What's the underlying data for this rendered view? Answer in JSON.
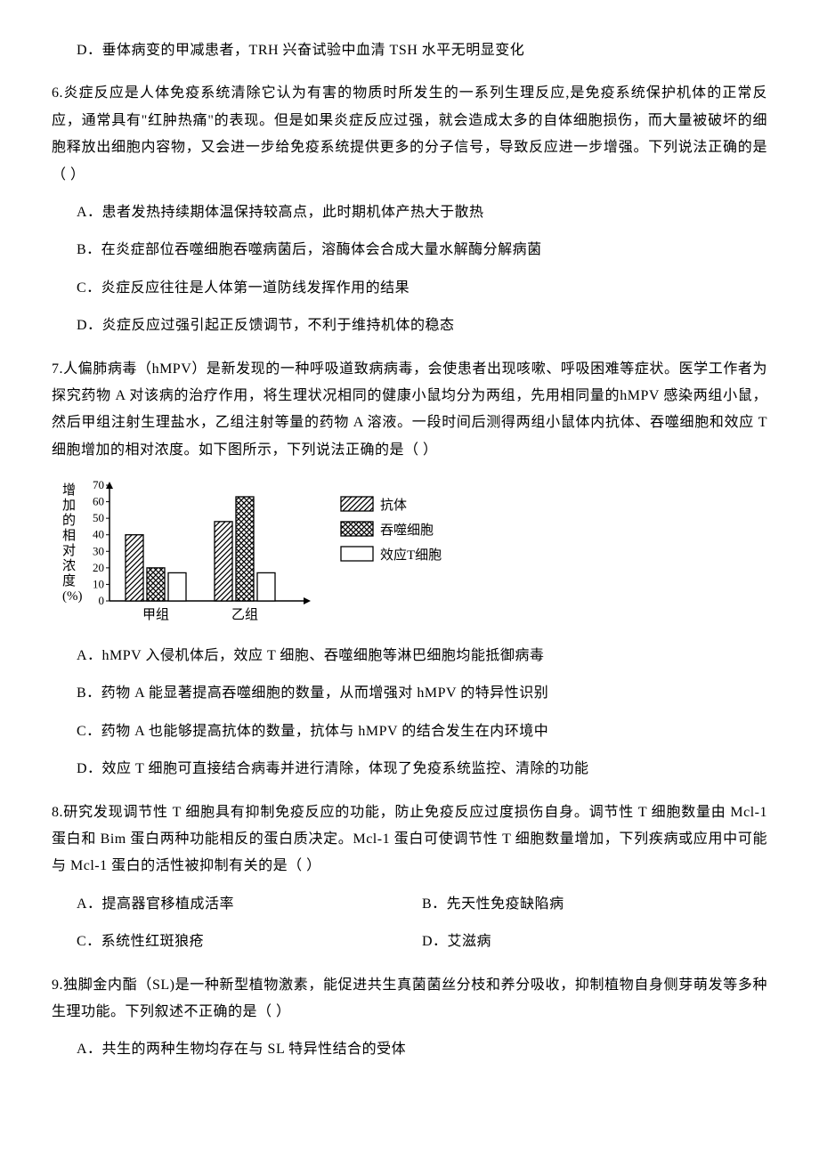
{
  "q5": {
    "options": {
      "D": "D．垂体病变的甲减患者，TRH 兴奋试验中血清 TSH 水平无明显变化"
    }
  },
  "q6": {
    "stem": "6.炎症反应是人体免疫系统清除它认为有害的物质时所发生的一系列生理反应,是免疫系统保护机体的正常反应，通常具有\"红肿热痛\"的表现。但是如果炎症反应过强，就会造成太多的自体细胞损伤，而大量被破坏的细胞释放出细胞内容物，又会进一步给免疫系统提供更多的分子信号，导致反应进一步增强。下列说法正确的是（    ）",
    "options": {
      "A": "A．患者发热持续期体温保持较高点，此时期机体产热大于散热",
      "B": "B．在炎症部位吞噬细胞吞噬病菌后，溶酶体会合成大量水解酶分解病菌",
      "C": "C．炎症反应往往是人体第一道防线发挥作用的结果",
      "D": "D．炎症反应过强引起正反馈调节，不利于维持机体的稳态"
    }
  },
  "q7": {
    "stem": "7.人偏肺病毒（hMPV）是新发现的一种呼吸道致病病毒，会使患者出现咳嗽、呼吸困难等症状。医学工作者为探究药物 A 对该病的治疗作用，将生理状况相同的健康小鼠均分为两组，先用相同量的hMPV 感染两组小鼠，然后甲组注射生理盐水，乙组注射等量的药物 A 溶液。一段时间后测得两组小鼠体内抗体、吞噬细胞和效应 T 细胞增加的相对浓度。如下图所示，下列说法正确的是（    ）",
    "options": {
      "A": "A．hMPV 入侵机体后，效应 T 细胞、吞噬细胞等淋巴细胞均能抵御病毒",
      "B": "B．药物 A 能显著提高吞噬细胞的数量，从而增强对 hMPV 的特异性识别",
      "C": "C．药物 A 也能够提高抗体的数量，抗体与 hMPV 的结合发生在内环境中",
      "D": "D．效应 T 细胞可直接结合病毒并进行清除，体现了免疫系统监控、清除的功能"
    },
    "chart": {
      "type": "bar",
      "y_label_lines": [
        "增",
        "加",
        "的",
        "相",
        "对",
        "浓",
        "度",
        "(%)"
      ],
      "y_label_fontsize": 15,
      "y_ticks": [
        0,
        10,
        20,
        30,
        40,
        50,
        60,
        70
      ],
      "y_tick_fontsize": 13,
      "groups": [
        "甲组",
        "乙组"
      ],
      "group_fontsize": 15,
      "series": [
        {
          "name": "抗体",
          "pattern": "hatch",
          "values": [
            40,
            48
          ]
        },
        {
          "name": "吞噬细胞",
          "pattern": "cross",
          "values": [
            20,
            63
          ]
        },
        {
          "name": "效应T细胞",
          "pattern": "none",
          "values": [
            17,
            17
          ]
        }
      ],
      "legend_fontsize": 15,
      "axis_color": "#000000",
      "bar_border_color": "#000000",
      "background_color": "#ffffff",
      "axis_arrow": true
    }
  },
  "q8": {
    "stem": "8.研究发现调节性 T 细胞具有抑制免疫反应的功能，防止免疫反应过度损伤自身。调节性 T 细胞数量由 Mcl-1 蛋白和 Bim 蛋白两种功能相反的蛋白质决定。Mcl-1 蛋白可使调节性 T 细胞数量增加，下列疾病或应用中可能与 Mcl-1 蛋白的活性被抑制有关的是（    ）",
    "options": {
      "A": "A．提高器官移植成活率",
      "B": "B．先天性免疫缺陷病",
      "C": "C．系统性红斑狼疮",
      "D": "D．艾滋病"
    }
  },
  "q9": {
    "stem": "9.独脚金内酯（SL)是一种新型植物激素，能促进共生真菌菌丝分枝和养分吸收，抑制植物自身侧芽萌发等多种生理功能。下列叙述不正确的是（    ）",
    "options": {
      "A": "A．共生的两种生物均存在与 SL 特异性结合的受体"
    }
  }
}
